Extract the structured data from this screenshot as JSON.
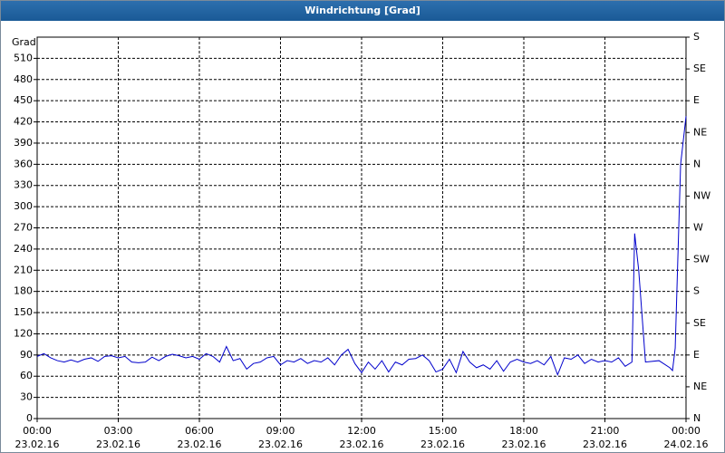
{
  "window_title": "Windrichtung [Grad]",
  "chart_data": {
    "type": "line",
    "y_label": "Grad",
    "xlim": [
      0,
      24
    ],
    "xticks": [
      {
        "value": 0,
        "label": "00:00",
        "date": "23.02.16"
      },
      {
        "value": 3,
        "label": "03:00",
        "date": "23.02.16"
      },
      {
        "value": 6,
        "label": "06:00",
        "date": "23.02.16"
      },
      {
        "value": 9,
        "label": "09:00",
        "date": "23.02.16"
      },
      {
        "value": 12,
        "label": "12:00",
        "date": "23.02.16"
      },
      {
        "value": 15,
        "label": "15:00",
        "date": "23.02.16"
      },
      {
        "value": 18,
        "label": "18:00",
        "date": "23.02.16"
      },
      {
        "value": 21,
        "label": "21:00",
        "date": "23.02.16"
      },
      {
        "value": 24,
        "label": "00:00",
        "date": "24.02.16"
      }
    ],
    "ylim": [
      0,
      540
    ],
    "yticks": [
      0,
      30,
      60,
      90,
      120,
      150,
      180,
      210,
      240,
      270,
      300,
      330,
      360,
      390,
      420,
      450,
      480,
      510
    ],
    "y2lim": [
      0,
      540
    ],
    "y2ticks": [
      {
        "value": 0,
        "label": "N"
      },
      {
        "value": 45,
        "label": "NE"
      },
      {
        "value": 90,
        "label": "E"
      },
      {
        "value": 135,
        "label": "SE"
      },
      {
        "value": 180,
        "label": "S"
      },
      {
        "value": 225,
        "label": "SW"
      },
      {
        "value": 270,
        "label": "W"
      },
      {
        "value": 315,
        "label": "NW"
      },
      {
        "value": 360,
        "label": "N"
      },
      {
        "value": 405,
        "label": "NE"
      },
      {
        "value": 450,
        "label": "E"
      },
      {
        "value": 495,
        "label": "SE"
      },
      {
        "value": 540,
        "label": "S"
      }
    ],
    "grid": true,
    "series": [
      {
        "color": "#0000cc",
        "x": [
          0,
          0.25,
          0.5,
          0.75,
          1,
          1.25,
          1.5,
          1.75,
          2,
          2.25,
          2.5,
          2.75,
          3,
          3.25,
          3.5,
          3.75,
          4,
          4.25,
          4.5,
          4.75,
          5,
          5.25,
          5.5,
          5.75,
          6,
          6.25,
          6.5,
          6.75,
          7,
          7.25,
          7.5,
          7.75,
          8,
          8.25,
          8.5,
          8.75,
          9,
          9.25,
          9.5,
          9.75,
          10,
          10.25,
          10.5,
          10.75,
          11,
          11.25,
          11.5,
          11.75,
          12,
          12.25,
          12.5,
          12.75,
          13,
          13.25,
          13.5,
          13.75,
          14,
          14.25,
          14.5,
          14.75,
          15,
          15.25,
          15.5,
          15.75,
          16,
          16.25,
          16.5,
          16.75,
          17,
          17.25,
          17.5,
          17.75,
          18,
          18.25,
          18.5,
          18.75,
          19,
          19.25,
          19.5,
          19.75,
          20,
          20.25,
          20.5,
          20.75,
          21,
          21.25,
          21.5,
          21.75,
          22,
          22.1,
          22.25,
          22.5,
          23,
          23.4,
          23.5,
          23.6,
          23.8,
          24
        ],
        "values": [
          88,
          92,
          86,
          82,
          80,
          83,
          80,
          84,
          86,
          81,
          88,
          89,
          86,
          88,
          80,
          79,
          80,
          87,
          82,
          88,
          91,
          89,
          86,
          88,
          84,
          92,
          88,
          80,
          102,
          82,
          85,
          70,
          78,
          80,
          86,
          88,
          76,
          82,
          80,
          85,
          78,
          82,
          80,
          86,
          76,
          90,
          98,
          78,
          65,
          80,
          70,
          82,
          66,
          80,
          76,
          84,
          85,
          90,
          82,
          66,
          70,
          84,
          65,
          95,
          80,
          72,
          76,
          70,
          82,
          67,
          80,
          84,
          80,
          78,
          82,
          76,
          88,
          62,
          86,
          84,
          90,
          78,
          84,
          80,
          82,
          80,
          86,
          74,
          80,
          262,
          210,
          80,
          82,
          72,
          68,
          100,
          360,
          428
        ]
      }
    ]
  }
}
